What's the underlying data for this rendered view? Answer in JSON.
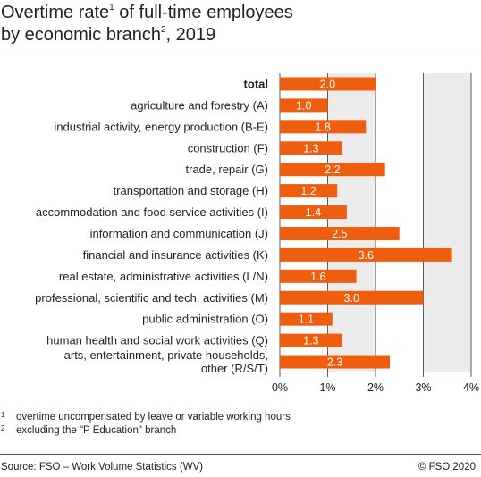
{
  "title": {
    "line1_a": "Overtime rate",
    "line1_sup": "1",
    "line1_b": " of full-time employees",
    "line2_a": "by economic branch",
    "line2_sup": "2",
    "line2_b": ", 2019"
  },
  "footnotes": [
    {
      "mark": "1",
      "text": "overtime uncompensated by leave or variable working hours"
    },
    {
      "mark": "2",
      "text": "excluding the \"P Education\" branch"
    }
  ],
  "source": "Source: FSO – Work Volume Statistics (WV)",
  "copyright": "© FSO 2020",
  "colors": {
    "bar": "#ef5e0e",
    "plot_bg": "#ececec",
    "grid": "#333333",
    "value_label": "#ffffff"
  },
  "chart_data": {
    "type": "bar",
    "orientation": "horizontal",
    "categories": [
      "total",
      "agriculture and forestry (A)",
      "industrial activity, energy production (B-E)",
      "construction (F)",
      "trade, repair (G)",
      "transportation and storage (H)",
      "accommodation and food service activities (I)",
      "information and communication (J)",
      "financial and insurance activities (K)",
      "real estate, administrative activities (L/N)",
      "professional, scientific and tech. activities (M)",
      "public administration (O)",
      "human health and social work activities (Q)",
      "arts, entertainment, private households, other (R/S/T)"
    ],
    "category_lines": [
      [
        "total"
      ],
      [
        "agriculture and forestry (A)"
      ],
      [
        "industrial activity, energy production (B-E)"
      ],
      [
        "construction (F)"
      ],
      [
        "trade, repair (G)"
      ],
      [
        "transportation and storage (H)"
      ],
      [
        "accommodation and food service activities (I)"
      ],
      [
        "information and communication (J)"
      ],
      [
        "financial and insurance activities (K)"
      ],
      [
        "real estate, administrative activities (L/N)"
      ],
      [
        "professional, scientific and tech. activities (M)"
      ],
      [
        "public administration (O)"
      ],
      [
        "human health and social work activities (Q)"
      ],
      [
        "arts, entertainment, private households,",
        "other (R/S/T)"
      ]
    ],
    "bold_categories": [
      "total"
    ],
    "values": [
      2.0,
      1.0,
      1.8,
      1.3,
      2.2,
      1.2,
      1.4,
      2.5,
      3.6,
      1.6,
      3.0,
      1.1,
      1.3,
      2.3
    ],
    "value_labels": [
      "2.0",
      "1.0",
      "1.8",
      "1.3",
      "2.2",
      "1.2",
      "1.4",
      "2.5",
      "3.6",
      "1.6",
      "3.0",
      "1.1",
      "1.3",
      "2.3"
    ],
    "unit": "%",
    "xlim": [
      0,
      4
    ],
    "xticks": [
      0,
      1,
      2,
      3,
      4
    ],
    "xtick_labels": [
      "0%",
      "1%",
      "2%",
      "3%",
      "4%"
    ],
    "grid": "vertical",
    "alternating_bands": true,
    "legend": "none"
  }
}
